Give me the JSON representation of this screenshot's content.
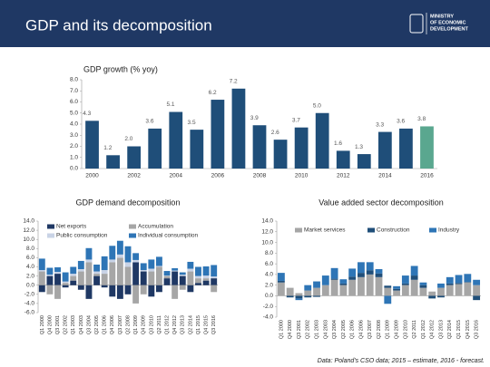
{
  "header": {
    "title": "GDP and its decomposition",
    "logo": [
      "MINISTRY",
      "OF ECONOMIC",
      "DEVELOPMENT"
    ]
  },
  "footer": "Data: Poland's CSO data; 2015 – estimate, 2016 - forecast.",
  "chart_data": [
    {
      "type": "bar",
      "title": "GDP growth (% yoy)",
      "categories": [
        "2000",
        null,
        "2002",
        null,
        "2004",
        null,
        "2006",
        null,
        "2008",
        null,
        "2010",
        null,
        "2012",
        null,
        "2014",
        null,
        "2016"
      ],
      "values": [
        4.3,
        1.2,
        2.0,
        3.6,
        5.1,
        3.5,
        6.2,
        7.2,
        3.9,
        2.6,
        3.7,
        5.0,
        1.6,
        1.3,
        3.3,
        3.6,
        3.8
      ],
      "value_labels": [
        "4.3",
        "1.2",
        "2.0",
        "3.6",
        "5.1",
        "3.5",
        "6.2",
        "7.2",
        "3.9",
        "2.6",
        "3.7",
        "5.0",
        "1.6",
        "1.3",
        "3.3",
        "3.6",
        "3.8"
      ],
      "colors": [
        "#1f4e79",
        "#1f4e79",
        "#1f4e79",
        "#1f4e79",
        "#1f4e79",
        "#1f4e79",
        "#1f4e79",
        "#1f4e79",
        "#1f4e79",
        "#1f4e79",
        "#1f4e79",
        "#1f4e79",
        "#1f4e79",
        "#1f4e79",
        "#1f4e79",
        "#1f4e79",
        "#5aa78f"
      ],
      "ylim": [
        0,
        8
      ],
      "yticks": [
        {
          "value": 0,
          "label": "0.0"
        },
        {
          "value": 1,
          "label": "1.0"
        },
        {
          "value": 2,
          "label": "2.0"
        },
        {
          "value": 3,
          "label": "3.0"
        },
        {
          "value": 4,
          "label": "4.0"
        },
        {
          "value": 5,
          "label": "5.0"
        },
        {
          "value": 6,
          "label": "6.0"
        },
        {
          "value": 7,
          "label": "7.0"
        },
        {
          "value": 8,
          "label": "8.0"
        }
      ]
    },
    {
      "type": "stacked_bar",
      "title": "GDP demand decomposition",
      "categories": [
        "Q1 2000",
        "Q4 2000",
        "Q3 2001",
        "Q2 2002",
        "Q1 2003",
        "Q4 2003",
        "Q3 2004",
        "Q2 2005",
        "Q1 2006",
        "Q4 2006",
        "Q3 2007",
        "Q2 2008",
        "Q1 2009",
        "Q4 2009",
        "Q3 2010",
        "Q2 2011",
        "Q1 2012",
        "Q4 2012",
        "Q3 2013",
        "Q2 2014",
        "Q1 2015",
        "Q4 2015",
        "Q3 2016"
      ],
      "series": [
        {
          "name": "Net exports",
          "color": "#1f3864",
          "values": [
            -1.5,
            2.0,
            2.5,
            -0.5,
            1.0,
            -1.0,
            -3.0,
            2.0,
            -0.5,
            -2.5,
            -3.0,
            -2.0,
            5.0,
            3.0,
            -2.5,
            -1.5,
            1.5,
            3.0,
            2.0,
            -1.5,
            0.5,
            1.0,
            1.5
          ]
        },
        {
          "name": "Accumulation",
          "color": "#a6a6a6",
          "values": [
            3.0,
            -2.0,
            -3.0,
            0.5,
            1.0,
            3.0,
            5.0,
            0.5,
            2.5,
            5.0,
            6.0,
            4.0,
            -4.0,
            -2.0,
            3.0,
            4.0,
            0.5,
            -3.0,
            -1.0,
            3.0,
            1.0,
            0.5,
            -1.5
          ]
        },
        {
          "name": "Public consumption",
          "color": "#c9d3e6",
          "values": [
            0.3,
            0.3,
            0.4,
            0.3,
            0.5,
            0.5,
            0.6,
            0.5,
            0.8,
            0.6,
            0.7,
            1.0,
            0.5,
            0.3,
            0.6,
            0.2,
            0.1,
            0.2,
            0.3,
            0.6,
            0.5,
            0.6,
            0.4
          ]
        },
        {
          "name": "Individual consumption",
          "color": "#2e75b6",
          "values": [
            2.5,
            1.5,
            1.0,
            2.0,
            1.5,
            1.8,
            2.5,
            1.5,
            3.0,
            3.0,
            3.0,
            3.5,
            1.5,
            1.5,
            2.0,
            2.0,
            1.0,
            0.5,
            0.5,
            1.5,
            2.0,
            2.0,
            2.5
          ]
        }
      ],
      "ylim": [
        -6,
        14
      ],
      "yticks": [
        {
          "value": -6,
          "label": "-6.0"
        },
        {
          "value": -4,
          "label": "-4.0"
        },
        {
          "value": -2,
          "label": "-2.0"
        },
        {
          "value": 0,
          "label": "0.0"
        },
        {
          "value": 2,
          "label": "2.0"
        },
        {
          "value": 4,
          "label": "4.0"
        },
        {
          "value": 6,
          "label": "6.0"
        },
        {
          "value": 8,
          "label": "8.0"
        },
        {
          "value": 10,
          "label": "10.0"
        },
        {
          "value": 12,
          "label": "12.0"
        },
        {
          "value": 14,
          "label": "14.0"
        }
      ]
    },
    {
      "type": "stacked_bar",
      "title": "Value added sector decomposition",
      "categories": [
        "Q1 2000",
        "Q4 2000",
        "Q3 2001",
        "Q2 2002",
        "Q1 2003",
        "Q4 2003",
        "Q3 2004",
        "Q2 2005",
        "Q1 2006",
        "Q4 2006",
        "Q3 2007",
        "Q2 2008",
        "Q1 2009",
        "Q4 2009",
        "Q3 2010",
        "Q2 2011",
        "Q1 2012",
        "Q4 2012",
        "Q3 2013",
        "Q2 2014",
        "Q1 2015",
        "Q4 2015",
        "Q3 2016"
      ],
      "series": [
        {
          "name": "Market services",
          "color": "#a6a6a6",
          "values": [
            2.5,
            1.5,
            0.5,
            1.0,
            1.5,
            2.0,
            3.0,
            2.0,
            3.0,
            3.5,
            4.0,
            3.5,
            1.5,
            1.0,
            2.0,
            3.0,
            1.5,
            0.8,
            1.5,
            2.0,
            2.2,
            2.5,
            2.0
          ]
        },
        {
          "name": "Construction",
          "color": "#1f4e79",
          "values": [
            0.3,
            -0.3,
            -0.5,
            -0.3,
            -0.2,
            0.0,
            0.2,
            0.3,
            0.6,
            0.8,
            0.8,
            0.7,
            0.4,
            0.3,
            0.3,
            0.8,
            0.5,
            -0.5,
            -0.3,
            0.3,
            0.2,
            0.1,
            -0.8
          ]
        },
        {
          "name": "Industry",
          "color": "#2e75b6",
          "values": [
            1.5,
            0.0,
            -0.3,
            1.0,
            1.2,
            1.8,
            2.0,
            0.8,
            1.5,
            2.0,
            1.5,
            0.8,
            -1.5,
            0.5,
            1.5,
            1.8,
            0.5,
            0.0,
            0.8,
            1.2,
            1.5,
            1.5,
            1.0
          ]
        }
      ],
      "ylim": [
        -4,
        14
      ],
      "yticks": [
        {
          "value": -4,
          "label": "-4.0"
        },
        {
          "value": -2,
          "label": "-2.0"
        },
        {
          "value": 0,
          "label": "0.0"
        },
        {
          "value": 2,
          "label": "2.0"
        },
        {
          "value": 4,
          "label": "4.0"
        },
        {
          "value": 6,
          "label": "6.0"
        },
        {
          "value": 8,
          "label": "8.0"
        },
        {
          "value": 10,
          "label": "10.0"
        },
        {
          "value": 12,
          "label": "12.0"
        },
        {
          "value": 14,
          "label": "14.0"
        }
      ]
    }
  ]
}
